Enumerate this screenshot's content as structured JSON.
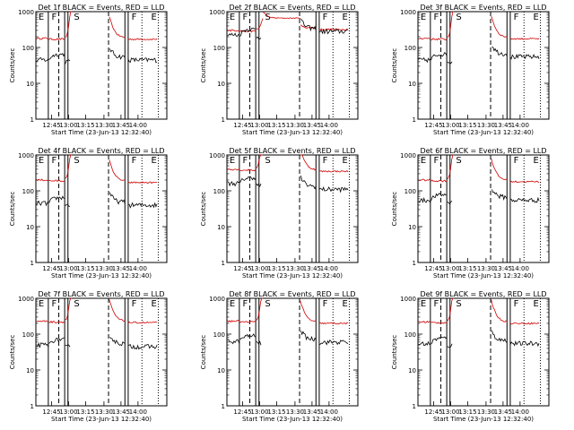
{
  "chart_data": {
    "type": "line",
    "scale": "log",
    "ylim": [
      1,
      1000
    ],
    "ytick_labels": [
      "1",
      "10",
      "100",
      "1000"
    ],
    "xtick_labels": [
      "12:45",
      "13:00",
      "13:15",
      "13:30",
      "13:45",
      "14:00"
    ],
    "xlabel": "Start Time (23-Jun-13 12:32:40)",
    "ylabel": "Counts/sec",
    "series_colors": {
      "events": "#000000",
      "lld": "#d00000"
    },
    "region_markers": [
      "E",
      "F",
      "S",
      "F",
      "E"
    ],
    "panels": [
      {
        "title": "Det 1f BLACK = Events, RED = LLD",
        "lld_base": 180,
        "events_base": 50,
        "lld_post": 170,
        "events_post": 45
      },
      {
        "title": "Det 2f BLACK = Events, RED = LLD",
        "lld_base": 300,
        "events_base": 250,
        "lld_post": 320,
        "events_post": 280
      },
      {
        "title": "Det 3f BLACK = Events, RED = LLD",
        "lld_base": 180,
        "events_base": 50,
        "lld_post": 175,
        "events_post": 55
      },
      {
        "title": "Det 4f BLACK = Events, RED = LLD",
        "lld_base": 200,
        "events_base": 50,
        "lld_post": 170,
        "events_post": 40
      },
      {
        "title": "Det 5f BLACK = Events, RED = LLD",
        "lld_base": 400,
        "events_base": 180,
        "lld_post": 350,
        "events_post": 110
      },
      {
        "title": "Det 6f BLACK = Events, RED = LLD",
        "lld_base": 200,
        "events_base": 60,
        "lld_post": 180,
        "events_post": 55
      },
      {
        "title": "Det 7f BLACK = Events, RED = LLD",
        "lld_base": 230,
        "events_base": 55,
        "lld_post": 210,
        "events_post": 45
      },
      {
        "title": "Det 8f BLACK = Events, RED = LLD",
        "lld_base": 230,
        "events_base": 70,
        "lld_post": 200,
        "events_post": 60
      },
      {
        "title": "Det 9f BLACK = Events, RED = LLD",
        "lld_base": 220,
        "events_base": 60,
        "lld_post": 200,
        "events_post": 55
      }
    ]
  }
}
